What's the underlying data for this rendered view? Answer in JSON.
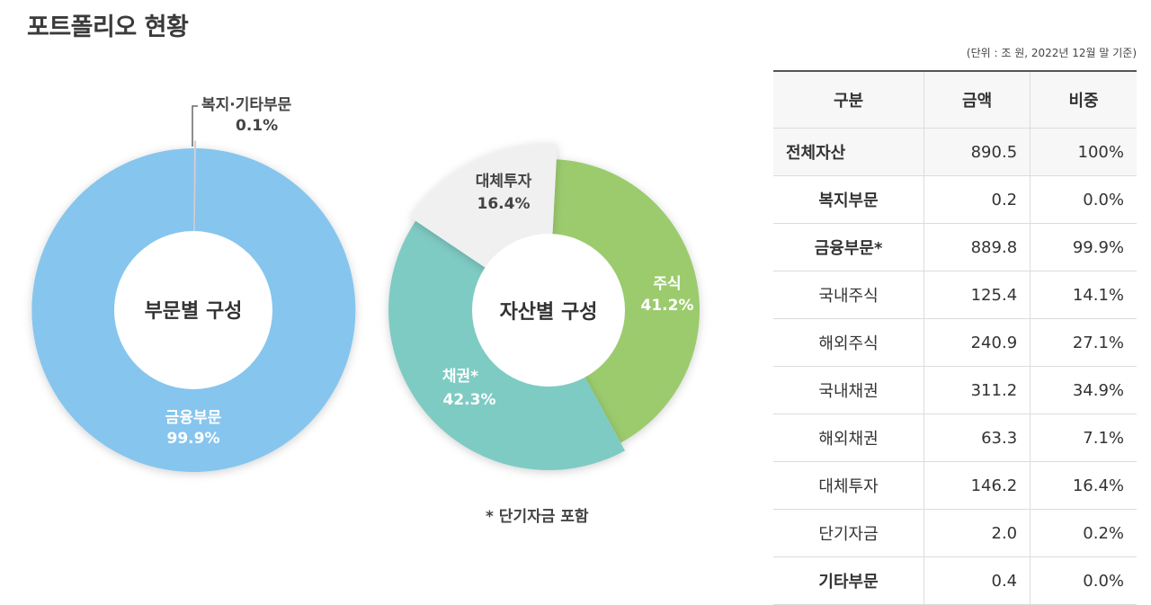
{
  "page": {
    "title": "포트폴리오 현황",
    "unit_note": "(단위 : 조 원, 2022년 12월 말 기준)",
    "footnote": "* 단기자금 포함"
  },
  "chart_data": [
    {
      "type": "pie",
      "title": "부문별 구성",
      "slices": [
        {
          "label": "금융부문",
          "value_label": "99.9%",
          "value": 99.9,
          "color": "#86c5ee"
        },
        {
          "label": "복지·기타부문",
          "value_label": "0.1%",
          "value": 0.1,
          "color": "#e9e9e9"
        }
      ]
    },
    {
      "type": "pie",
      "title": "자산별 구성",
      "slices": [
        {
          "label": "주식",
          "value_label": "41.2%",
          "value": 41.2,
          "color": "#9ccb6e"
        },
        {
          "label": "채권*",
          "value_label": "42.3%",
          "value": 42.3,
          "color": "#7ecbc3"
        },
        {
          "label": "대체투자",
          "value_label": "16.4%",
          "value": 16.4,
          "color": "#f0f0f0"
        }
      ]
    }
  ],
  "table": {
    "headers": [
      "구분",
      "금액",
      "비중"
    ],
    "rows": [
      {
        "category": "전체자산",
        "amount": "890.5",
        "share": "100%"
      },
      {
        "category": "복지부문",
        "amount": "0.2",
        "share": "0.0%"
      },
      {
        "category": "금융부문*",
        "amount": "889.8",
        "share": "99.9%"
      },
      {
        "category": "국내주식",
        "amount": "125.4",
        "share": "14.1%"
      },
      {
        "category": "해외주식",
        "amount": "240.9",
        "share": "27.1%"
      },
      {
        "category": "국내채권",
        "amount": "311.2",
        "share": "34.9%"
      },
      {
        "category": "해외채권",
        "amount": "63.3",
        "share": "7.1%"
      },
      {
        "category": "대체투자",
        "amount": "146.2",
        "share": "16.4%"
      },
      {
        "category": "단기자금",
        "amount": "2.0",
        "share": "0.2%"
      },
      {
        "category": "기타부문",
        "amount": "0.4",
        "share": "0.0%"
      }
    ]
  }
}
